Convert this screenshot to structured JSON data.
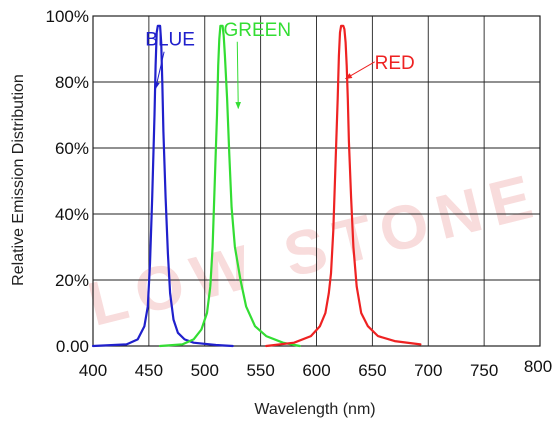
{
  "chart_data": {
    "type": "line",
    "title": "",
    "xlabel": "Wavelength (nm)",
    "ylabel": "Relative Emission Distribution",
    "xlim": [
      400,
      800
    ],
    "ylim": [
      0,
      100
    ],
    "x_ticks": [
      "400",
      "450",
      "500",
      "550",
      "600",
      "650",
      "700",
      "750",
      "800"
    ],
    "y_ticks": [
      "0.00",
      "20%",
      "40%",
      "60%",
      "80%",
      "100%"
    ],
    "grid": true,
    "legend": "none",
    "series": [
      {
        "name": "BLUE",
        "color": "#2020cc",
        "points": [
          [
            400,
            0
          ],
          [
            430,
            0.5
          ],
          [
            440,
            2
          ],
          [
            446,
            6
          ],
          [
            449,
            12
          ],
          [
            451,
            25
          ],
          [
            453,
            45
          ],
          [
            455,
            70
          ],
          [
            456,
            85
          ],
          [
            457,
            95
          ],
          [
            458,
            97
          ],
          [
            460,
            97
          ],
          [
            461,
            92
          ],
          [
            462,
            80
          ],
          [
            463,
            65
          ],
          [
            465,
            45
          ],
          [
            467,
            28
          ],
          [
            469,
            16
          ],
          [
            472,
            8
          ],
          [
            476,
            4
          ],
          [
            482,
            2
          ],
          [
            490,
            1
          ],
          [
            510,
            0.3
          ],
          [
            525,
            0
          ]
        ]
      },
      {
        "name": "GREEN",
        "color": "#33dd33",
        "points": [
          [
            460,
            0
          ],
          [
            480,
            0.5
          ],
          [
            490,
            2
          ],
          [
            497,
            5
          ],
          [
            502,
            10
          ],
          [
            505,
            18
          ],
          [
            507,
            30
          ],
          [
            509,
            50
          ],
          [
            511,
            70
          ],
          [
            512,
            85
          ],
          [
            513,
            93
          ],
          [
            514,
            97
          ],
          [
            516,
            97
          ],
          [
            517,
            94
          ],
          [
            518,
            88
          ],
          [
            520,
            75
          ],
          [
            522,
            58
          ],
          [
            524,
            42
          ],
          [
            527,
            30
          ],
          [
            532,
            20
          ],
          [
            537,
            12
          ],
          [
            545,
            6
          ],
          [
            555,
            3
          ],
          [
            570,
            1
          ],
          [
            585,
            0
          ]
        ]
      },
      {
        "name": "RED",
        "color": "#ee2222",
        "points": [
          [
            555,
            0
          ],
          [
            580,
            1
          ],
          [
            595,
            3
          ],
          [
            603,
            6
          ],
          [
            608,
            10
          ],
          [
            611,
            16
          ],
          [
            613,
            22
          ],
          [
            615,
            35
          ],
          [
            617,
            55
          ],
          [
            619,
            75
          ],
          [
            620,
            88
          ],
          [
            621,
            95
          ],
          [
            622,
            97
          ],
          [
            624,
            97
          ],
          [
            625,
            96
          ],
          [
            626,
            92
          ],
          [
            627,
            85
          ],
          [
            628,
            75
          ],
          [
            629,
            62
          ],
          [
            631,
            45
          ],
          [
            633,
            30
          ],
          [
            636,
            18
          ],
          [
            640,
            10
          ],
          [
            646,
            6
          ],
          [
            655,
            3
          ],
          [
            670,
            1.5
          ],
          [
            693,
            0.5
          ]
        ]
      }
    ],
    "annotations": [
      {
        "text": "BLUE",
        "color": "#2020cc",
        "x": 469,
        "y": 91,
        "arrow_to": [
          456,
          78
        ]
      },
      {
        "text": "GREEN",
        "color": "#33dd33",
        "x": 547,
        "y": 94,
        "arrow_to": [
          530,
          72
        ]
      },
      {
        "text": "RED",
        "color": "#ee2222",
        "x": 670,
        "y": 84,
        "arrow_to": [
          626,
          81
        ]
      }
    ]
  },
  "watermark": {
    "lines": [
      "LOW STONE"
    ],
    "color": "#f8dcdc"
  }
}
